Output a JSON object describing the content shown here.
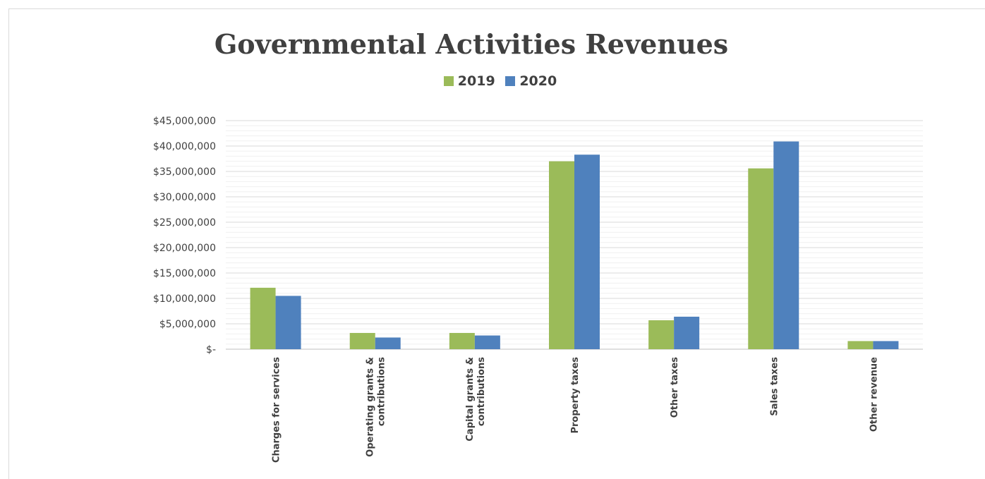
{
  "chart_data": {
    "type": "bar",
    "title": "Governmental  Activities Revenues",
    "categories": [
      [
        "Charges for services"
      ],
      [
        "Operating grants &",
        "contributions"
      ],
      [
        "Capital grants &",
        "contributions"
      ],
      [
        "Property taxes"
      ],
      [
        "Other taxes"
      ],
      [
        "Sales taxes"
      ],
      [
        "Other revenue"
      ]
    ],
    "series": [
      {
        "name": "2019",
        "color": "#9bbb59",
        "values": [
          12100000,
          3200000,
          3200000,
          37000000,
          5700000,
          35600000,
          1600000
        ]
      },
      {
        "name": "2020",
        "color": "#4f81bd",
        "values": [
          10500000,
          2300000,
          2700000,
          38300000,
          6400000,
          40900000,
          1600000
        ]
      }
    ],
    "ylim": [
      0,
      45000000
    ],
    "yticks": [
      {
        "value": 0,
        "label": "$-"
      },
      {
        "value": 5000000,
        "label": "$5,000,000"
      },
      {
        "value": 10000000,
        "label": "$10,000,000"
      },
      {
        "value": 15000000,
        "label": "$15,000,000"
      },
      {
        "value": 20000000,
        "label": "$20,000,000"
      },
      {
        "value": 25000000,
        "label": "$25,000,000"
      },
      {
        "value": 30000000,
        "label": "$30,000,000"
      },
      {
        "value": 35000000,
        "label": "$35,000,000"
      },
      {
        "value": 40000000,
        "label": "$40,000,000"
      },
      {
        "value": 45000000,
        "label": "$45,000,000"
      }
    ],
    "minor_grid_step": 1000000,
    "grid": true,
    "legend": "top-center"
  }
}
